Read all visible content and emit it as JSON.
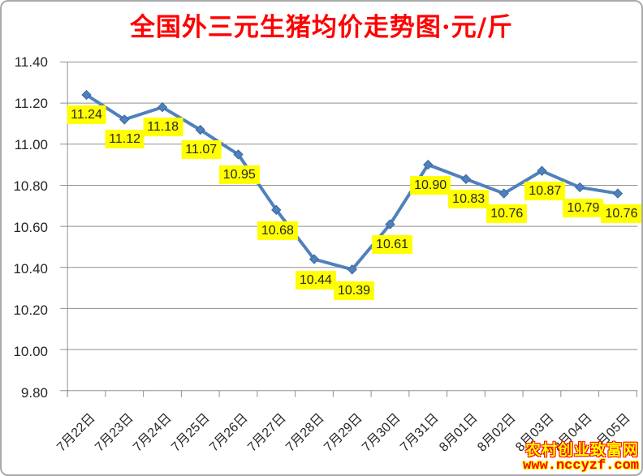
{
  "title": "全国外三元生猪均价走势图·元/斤",
  "title_color": "#FF0000",
  "chart_data": {
    "type": "line",
    "title": "全国外三元生猪均价走势图·元/斤",
    "categories": [
      "7月22日",
      "7月23日",
      "7月24日",
      "7月25日",
      "7月26日",
      "7月27日",
      "7月28日",
      "7月29日",
      "7月30日",
      "7月31日",
      "8月01日",
      "8月02日",
      "8月03日",
      "8月04日",
      "8月05日"
    ],
    "values": [
      11.24,
      11.12,
      11.18,
      11.07,
      10.95,
      10.68,
      10.44,
      10.39,
      10.61,
      10.9,
      10.83,
      10.76,
      10.87,
      10.79,
      10.76
    ],
    "point_labels": [
      "11.24",
      "11.12",
      "11.18",
      "11.07",
      "10.95",
      "10.68",
      "10.44",
      "10.39",
      "10.61",
      "10.90",
      "10.83",
      "10.76",
      "10.87",
      "10.79",
      "10.76"
    ],
    "y_ticks": [
      "11.40",
      "11.20",
      "11.00",
      "10.80",
      "10.60",
      "10.40",
      "10.20",
      "10.00",
      "9.80"
    ],
    "ylim": [
      9.8,
      11.4
    ],
    "ytick_step": 0.2,
    "xlabel": "",
    "ylabel": "",
    "grid": true,
    "legend": "none",
    "marker": "diamond",
    "series_color": "#4F81BD",
    "marker_edge_color": "#3a679f",
    "grid_color": "#8f8f8f",
    "axis_text_color": "#262626",
    "label_bg": "#FFFF00",
    "label_text_color": "#262626"
  },
  "watermark": {
    "line1": "农村创业致富网",
    "line2": "www.nccyzf.com",
    "line1_color": "#FFFF00",
    "line1_outline": "#FF0000",
    "line2_color": "#FF0000",
    "line2_outline": "#FFFF00"
  }
}
